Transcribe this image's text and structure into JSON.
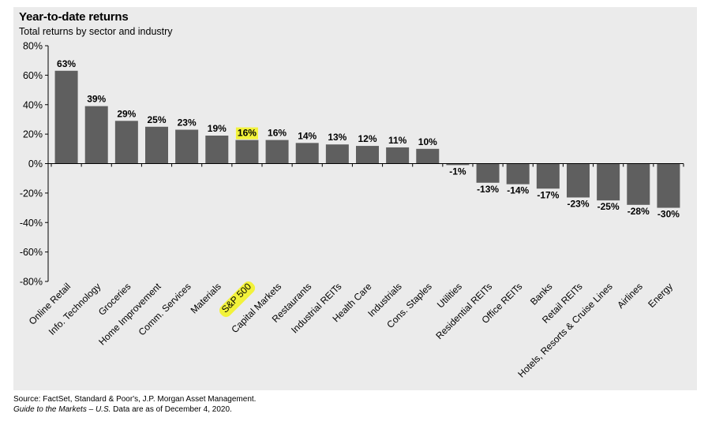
{
  "title": "Year-to-date returns",
  "subtitle": "Total returns by sector and industry",
  "footer": {
    "source": "Source: FactSet, Standard & Poor's, J.P. Morgan Asset Management.",
    "guide_italic": "Guide to the Markets – U.S.",
    "guide_rest": " Data are as of December 4, 2020."
  },
  "colors": {
    "bar": "#5f5f5f",
    "background": "#ebebeb",
    "highlight": "#f2f23a"
  },
  "chart_data": {
    "type": "bar",
    "categories": [
      "Online Retail",
      "Info. Technology",
      "Groceries",
      "Home Improvement",
      "Comm. Services",
      "Materials",
      "S&P 500",
      "Capital Markets",
      "Restaurants",
      "Industrial REITs",
      "Health Care",
      "Industrials",
      "Cons. Staples",
      "Utilities",
      "Residential REITs",
      "Office REITs",
      "Banks",
      "Retail REITs",
      "Hotels, Resorts & Cruise Lines",
      "Airlines",
      "Energy"
    ],
    "values": [
      63,
      39,
      29,
      25,
      23,
      19,
      16,
      16,
      14,
      13,
      12,
      11,
      10,
      -1,
      -13,
      -14,
      -17,
      -23,
      -25,
      -28,
      -30
    ],
    "labels": [
      "63%",
      "39%",
      "29%",
      "25%",
      "23%",
      "19%",
      "16%",
      "16%",
      "14%",
      "13%",
      "12%",
      "11%",
      "10%",
      "-1%",
      "-13%",
      "-14%",
      "-17%",
      "-23%",
      "-25%",
      "-28%",
      "-30%"
    ],
    "highlight_category": "S&P 500",
    "ylim": [
      -80,
      80
    ],
    "yticks": [
      -80,
      -60,
      -40,
      -20,
      0,
      20,
      40,
      60,
      80
    ],
    "ytick_labels": [
      "-80%",
      "-60%",
      "-40%",
      "-20%",
      "0%",
      "20%",
      "40%",
      "60%",
      "80%"
    ],
    "xlabel": "",
    "ylabel": "",
    "grid": false
  }
}
